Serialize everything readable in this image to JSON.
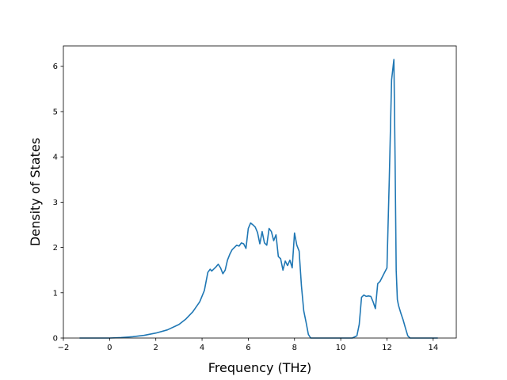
{
  "chart_data": {
    "type": "line",
    "title": "",
    "xlabel": "Frequency (THz)",
    "ylabel": "Density of States",
    "xlim": [
      -2.0,
      15.0
    ],
    "ylim": [
      0,
      6.45
    ],
    "xticks": [
      -2,
      0,
      2,
      4,
      6,
      8,
      10,
      12,
      14
    ],
    "yticks": [
      0,
      1,
      2,
      3,
      4,
      5,
      6
    ],
    "xtick_labels": [
      "−2",
      "0",
      "2",
      "4",
      "6",
      "8",
      "10",
      "12",
      "14"
    ],
    "ytick_labels": [
      "0",
      "1",
      "2",
      "3",
      "4",
      "5",
      "6"
    ],
    "grid": false,
    "line_color": "#1f77b4",
    "series": [
      {
        "x": [
          -1.3,
          -0.5,
          0.0,
          0.5,
          1.0,
          1.5,
          2.0,
          2.5,
          3.0,
          3.3,
          3.6,
          3.9,
          4.1,
          4.25,
          4.35,
          4.42,
          4.5,
          4.6,
          4.7,
          4.8,
          4.9,
          5.0,
          5.1,
          5.2,
          5.3,
          5.4,
          5.5,
          5.6,
          5.7,
          5.8,
          5.9,
          6.0,
          6.1,
          6.2,
          6.3,
          6.4,
          6.5,
          6.6,
          6.7,
          6.8,
          6.9,
          7.0,
          7.1,
          7.2,
          7.3,
          7.4,
          7.5,
          7.6,
          7.7,
          7.8,
          7.9,
          8.0,
          8.1,
          8.2,
          8.3,
          8.4,
          8.5,
          8.6,
          8.7,
          8.75,
          9.0,
          9.5,
          10.0,
          10.5,
          10.7,
          10.8,
          10.9,
          11.0,
          11.1,
          11.2,
          11.3,
          11.4,
          11.5,
          11.6,
          11.7,
          11.8,
          11.9,
          12.0,
          12.1,
          12.2,
          12.3,
          12.35,
          12.4,
          12.45,
          12.5,
          12.6,
          12.7,
          12.8,
          12.9,
          13.0,
          13.5,
          14.0,
          14.2
        ],
        "y": [
          0,
          0,
          0,
          0.01,
          0.03,
          0.06,
          0.11,
          0.18,
          0.3,
          0.42,
          0.58,
          0.8,
          1.05,
          1.45,
          1.52,
          1.48,
          1.52,
          1.57,
          1.63,
          1.55,
          1.42,
          1.5,
          1.72,
          1.85,
          1.95,
          2.0,
          2.05,
          2.03,
          2.1,
          2.08,
          1.98,
          2.42,
          2.54,
          2.5,
          2.45,
          2.33,
          2.08,
          2.35,
          2.1,
          2.05,
          2.42,
          2.35,
          2.15,
          2.28,
          1.8,
          1.75,
          1.5,
          1.7,
          1.6,
          1.72,
          1.55,
          2.32,
          2.05,
          1.92,
          1.15,
          0.6,
          0.35,
          0.08,
          0.0,
          0.0,
          0,
          0,
          0,
          0,
          0.05,
          0.3,
          0.9,
          0.95,
          0.92,
          0.93,
          0.92,
          0.8,
          0.65,
          1.2,
          1.25,
          1.35,
          1.45,
          1.55,
          3.5,
          5.7,
          6.15,
          4.0,
          1.5,
          0.85,
          0.72,
          0.55,
          0.4,
          0.22,
          0.05,
          0.0,
          0,
          0,
          0
        ]
      }
    ]
  }
}
